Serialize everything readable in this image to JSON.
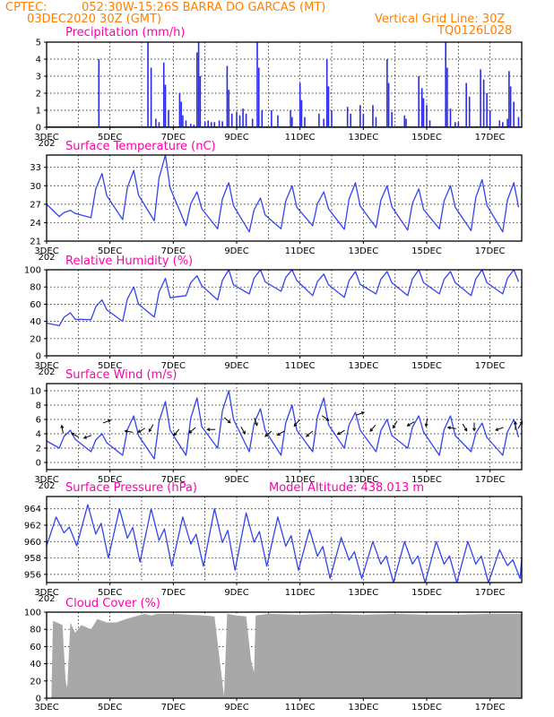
{
  "header": {
    "source": "CPTEC:",
    "location": "052:30W-15:26S  BARRA DO GARCAS (MT)",
    "start_time": "03DEC2020 30Z (GMT)",
    "grid_note": "Vertical Grid Line: 30Z",
    "run_id": "TQ0126L028"
  },
  "colors": {
    "header": "#ff7f00",
    "panel_title": "#ff00aa",
    "series": "#3344ee",
    "bars": "#2a2aee",
    "cloud": "#a8a8a8"
  },
  "x_axis": {
    "date_labels": [
      "3DEC",
      "5DEC",
      "7DEC",
      "9DEC",
      "11DEC",
      "13DEC",
      "15DEC",
      "17DEC"
    ],
    "year_stub": "202"
  },
  "chart_data": [
    {
      "id": "precip",
      "type": "bar",
      "title": "Precipitation (mm/h)",
      "ylim": [
        0,
        5
      ],
      "yticks": [
        0,
        1,
        2,
        3,
        4,
        5
      ],
      "xlim_days": [
        3.0,
        18.0
      ],
      "bars": [
        [
          4.65,
          4.0
        ],
        [
          6.2,
          5.0
        ],
        [
          6.3,
          3.5
        ],
        [
          6.45,
          0.5
        ],
        [
          6.55,
          0.3
        ],
        [
          6.7,
          3.8
        ],
        [
          6.75,
          2.5
        ],
        [
          6.85,
          1.0
        ],
        [
          7.2,
          2.0
        ],
        [
          7.25,
          1.5
        ],
        [
          7.3,
          0.7
        ],
        [
          7.4,
          0.4
        ],
        [
          7.55,
          0.2
        ],
        [
          7.65,
          0.15
        ],
        [
          7.75,
          4.4
        ],
        [
          7.8,
          5.0
        ],
        [
          7.85,
          3.0
        ],
        [
          8.0,
          0.3
        ],
        [
          8.1,
          0.4
        ],
        [
          8.2,
          0.3
        ],
        [
          8.3,
          0.3
        ],
        [
          8.45,
          0.4
        ],
        [
          8.55,
          0.35
        ],
        [
          8.7,
          3.6
        ],
        [
          8.75,
          2.2
        ],
        [
          8.85,
          0.8
        ],
        [
          9.0,
          0.9
        ],
        [
          9.1,
          0.7
        ],
        [
          9.2,
          1.1
        ],
        [
          9.3,
          0.8
        ],
        [
          9.5,
          0.5
        ],
        [
          9.65,
          5.0
        ],
        [
          9.7,
          3.5
        ],
        [
          9.8,
          1.0
        ],
        [
          10.1,
          1.0
        ],
        [
          10.3,
          0.7
        ],
        [
          10.7,
          1.0
        ],
        [
          10.75,
          0.6
        ],
        [
          11.0,
          2.6
        ],
        [
          11.05,
          1.6
        ],
        [
          11.15,
          0.6
        ],
        [
          11.6,
          0.8
        ],
        [
          11.75,
          0.5
        ],
        [
          11.85,
          4.0
        ],
        [
          11.9,
          2.4
        ],
        [
          12.0,
          1.0
        ],
        [
          12.5,
          1.2
        ],
        [
          12.6,
          0.8
        ],
        [
          12.9,
          1.3
        ],
        [
          13.0,
          0.8
        ],
        [
          13.3,
          1.3
        ],
        [
          13.4,
          0.6
        ],
        [
          13.75,
          4.0
        ],
        [
          13.8,
          2.6
        ],
        [
          13.9,
          0.9
        ],
        [
          14.3,
          0.7
        ],
        [
          14.35,
          0.5
        ],
        [
          14.75,
          3.0
        ],
        [
          14.85,
          2.3
        ],
        [
          14.9,
          1.7
        ],
        [
          15.0,
          1.3
        ],
        [
          15.1,
          0.4
        ],
        [
          15.6,
          5.0
        ],
        [
          15.65,
          3.5
        ],
        [
          15.75,
          1.1
        ],
        [
          15.9,
          0.3
        ],
        [
          16.0,
          0.3
        ],
        [
          16.25,
          2.6
        ],
        [
          16.35,
          1.8
        ],
        [
          16.7,
          3.4
        ],
        [
          16.8,
          2.8
        ],
        [
          16.9,
          2.0
        ],
        [
          17.0,
          1.0
        ],
        [
          17.3,
          0.4
        ],
        [
          17.4,
          0.3
        ],
        [
          17.55,
          0.5
        ],
        [
          17.6,
          3.3
        ],
        [
          17.65,
          2.4
        ],
        [
          17.75,
          1.5
        ],
        [
          17.9,
          0.6
        ]
      ]
    },
    {
      "id": "temperature",
      "type": "line",
      "title": "Surface Temperature (nC)",
      "ylim": [
        21,
        35
      ],
      "yticks": [
        21,
        24,
        27,
        30,
        33
      ],
      "xlim_days": [
        3.0,
        18.0
      ],
      "daily_min": [
        25.0,
        24.8,
        24.5,
        24.3,
        23.5,
        23.0,
        22.5,
        23.0,
        23.5,
        22.9,
        23.2,
        22.8,
        23.0,
        22.7,
        22.5,
        23.0,
        23.5
      ],
      "daily_max": [
        26.0,
        32.0,
        32.5,
        35.0,
        29.0,
        30.5,
        28.0,
        30.0,
        29.0,
        30.5,
        30.0,
        29.5,
        30.0,
        31.0,
        30.5,
        29.5,
        29.0
      ],
      "start_value": 27.0
    },
    {
      "id": "humidity",
      "type": "line",
      "title": "Relative Humidity (%)",
      "ylim": [
        0,
        100
      ],
      "yticks": [
        0,
        20,
        40,
        60,
        80,
        100
      ],
      "xlim_days": [
        3.0,
        18.0
      ],
      "daily_min": [
        35,
        42,
        40,
        45,
        70,
        65,
        72,
        75,
        70,
        68,
        72,
        70,
        72,
        70,
        72,
        74,
        75
      ],
      "daily_max": [
        50,
        65,
        80,
        90,
        93,
        100,
        100,
        100,
        95,
        98,
        98,
        100,
        98,
        100,
        100,
        100,
        98
      ],
      "start_value": 38
    },
    {
      "id": "wind",
      "type": "line",
      "title": "Surface Wind (m/s)",
      "ylim": [
        -1,
        11
      ],
      "yticks": [
        0,
        2,
        4,
        6,
        8,
        10
      ],
      "xlim_days": [
        3.0,
        18.0
      ],
      "daily_min": [
        2.0,
        1.5,
        1.0,
        0.5,
        1.0,
        2.0,
        1.5,
        1.0,
        1.5,
        2.0,
        1.5,
        2.0,
        1.0,
        1.5,
        1.0,
        1.0,
        1.0
      ],
      "daily_max": [
        4.5,
        4.0,
        6.5,
        8.5,
        9.0,
        10.0,
        7.5,
        8.0,
        9.0,
        7.0,
        6.0,
        6.5,
        6.5,
        5.5,
        6.0,
        5.5,
        5.0
      ],
      "start_value": 3.0,
      "vectors": [
        [
          3.5,
          4.6,
          100
        ],
        [
          3.9,
          3.8,
          150
        ],
        [
          4.3,
          3.6,
          200
        ],
        [
          4.9,
          5.7,
          20
        ],
        [
          5.6,
          4.3,
          170
        ],
        [
          6.0,
          4.5,
          210
        ],
        [
          6.3,
          4.8,
          240
        ],
        [
          7.1,
          4.2,
          230
        ],
        [
          7.6,
          4.5,
          220
        ],
        [
          8.2,
          4.6,
          180
        ],
        [
          8.7,
          5.9,
          320
        ],
        [
          9.2,
          4.5,
          300
        ],
        [
          9.6,
          5.7,
          290
        ],
        [
          10.0,
          4.0,
          220
        ],
        [
          10.4,
          4.1,
          210
        ],
        [
          10.9,
          5.5,
          230
        ],
        [
          11.3,
          4.0,
          220
        ],
        [
          11.8,
          6.2,
          325
        ],
        [
          12.3,
          4.2,
          210
        ],
        [
          12.9,
          6.8,
          20
        ],
        [
          13.3,
          4.8,
          230
        ],
        [
          14.0,
          5.3,
          240
        ],
        [
          14.5,
          5.4,
          210
        ],
        [
          15.0,
          5.6,
          260
        ],
        [
          15.8,
          4.8,
          170
        ],
        [
          16.2,
          4.9,
          300
        ],
        [
          16.5,
          5.0,
          270
        ],
        [
          17.3,
          4.7,
          200
        ],
        [
          17.8,
          5.1,
          90
        ],
        [
          17.95,
          5.2,
          60
        ]
      ]
    },
    {
      "id": "pressure",
      "type": "line",
      "title": "Surface Pressure (hPa)",
      "model_altitude": "Model Altitude: 438.013 m",
      "ylim": [
        955,
        965.5
      ],
      "yticks": [
        956,
        958,
        960,
        962,
        964
      ],
      "xlim_days": [
        3.0,
        18.0
      ],
      "semidiurnal_peaks": [
        963.0,
        964.5,
        964.0,
        964.0,
        963.0,
        964.0,
        963.5,
        963.0,
        961.5,
        960.5,
        960.0,
        960.0,
        960.0,
        960.0,
        959.0
      ],
      "semidiurnal_troughs": [
        959.5,
        958.0,
        957.5,
        957.0,
        957.0,
        956.5,
        957.0,
        956.5,
        955.5,
        955.5,
        955.0,
        955.0,
        955.0,
        955.0,
        955.5
      ],
      "start_value": 959.5
    },
    {
      "id": "cloud",
      "type": "area",
      "title": "Cloud Cover (%)",
      "ylim": [
        0,
        100
      ],
      "yticks": [
        0,
        20,
        40,
        60,
        80,
        100
      ],
      "xlim_days": [
        3.0,
        18.0
      ],
      "profile": [
        [
          3.0,
          0
        ],
        [
          3.15,
          0
        ],
        [
          3.2,
          90
        ],
        [
          3.5,
          85
        ],
        [
          3.6,
          20
        ],
        [
          3.65,
          12
        ],
        [
          3.75,
          88
        ],
        [
          3.9,
          76
        ],
        [
          4.1,
          85
        ],
        [
          4.4,
          80
        ],
        [
          4.6,
          92
        ],
        [
          4.9,
          88
        ],
        [
          5.2,
          88
        ],
        [
          5.5,
          92
        ],
        [
          5.8,
          95
        ],
        [
          6.1,
          98
        ],
        [
          6.3,
          96
        ],
        [
          6.5,
          98
        ],
        [
          7.0,
          98
        ],
        [
          7.5,
          97
        ],
        [
          8.0,
          96
        ],
        [
          8.3,
          95
        ],
        [
          8.55,
          18
        ],
        [
          8.6,
          2
        ],
        [
          8.7,
          98
        ],
        [
          9.0,
          96
        ],
        [
          9.3,
          95
        ],
        [
          9.45,
          45
        ],
        [
          9.55,
          30
        ],
        [
          9.6,
          96
        ],
        [
          10.0,
          98
        ],
        [
          11.0,
          97
        ],
        [
          12.0,
          98
        ],
        [
          13.0,
          97
        ],
        [
          14.0,
          98
        ],
        [
          15.0,
          97
        ],
        [
          16.0,
          97
        ],
        [
          17.0,
          98
        ],
        [
          18.0,
          98
        ]
      ]
    }
  ]
}
